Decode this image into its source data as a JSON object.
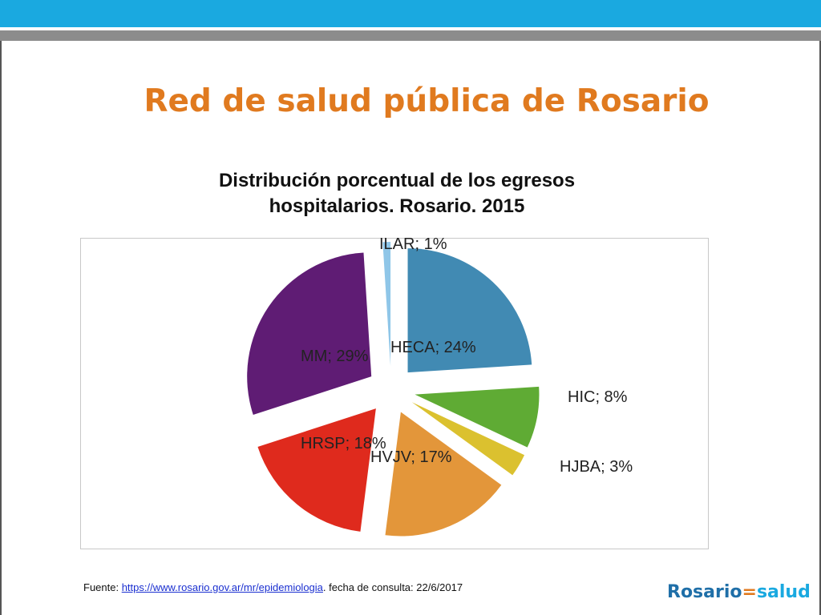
{
  "slide": {
    "title": "Red de salud pública de Rosario"
  },
  "chart_data": {
    "type": "pie",
    "title": "Distribución porcentual de los egresos hospitalarios. Rosario. 2015",
    "title_lines": [
      "Distribución porcentual de los egresos",
      "hospitalarios. Rosario. 2015"
    ],
    "slices": [
      {
        "name": "HECA",
        "value": 24,
        "color": "#418ab3",
        "label": "HECA; 24%"
      },
      {
        "name": "HIC",
        "value": 8,
        "color": "#5fab34",
        "label": "HIC; 8%"
      },
      {
        "name": "HJBA",
        "value": 3,
        "color": "#dbc12f",
        "label": "HJBA; 3%"
      },
      {
        "name": "HVJV",
        "value": 17,
        "color": "#e3963a",
        "label": "HVJV; 17%"
      },
      {
        "name": "HRSP",
        "value": 18,
        "color": "#df2a1d",
        "label": "HRSP; 18%"
      },
      {
        "name": "MM",
        "value": 29,
        "color": "#5f1c74",
        "label": "MM; 29%"
      },
      {
        "name": "ILAR",
        "value": 1,
        "color": "#8fc6e8",
        "label": "ILAR; 1%"
      }
    ]
  },
  "footer": {
    "source_prefix": "Fuente: ",
    "source_link": "https://www.rosario.gov.ar/mr/epidemiologia",
    "source_suffix": ". fecha de consulta: 22/6/2017"
  },
  "logo": {
    "part1": "Rosario",
    "separator": "=",
    "part2": "salud"
  }
}
